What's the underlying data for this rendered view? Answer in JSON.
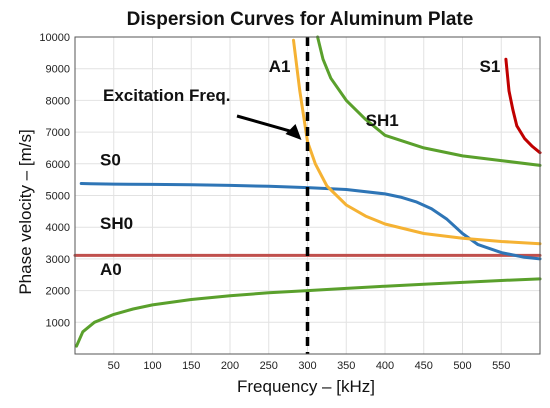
{
  "chart_data": {
    "type": "line",
    "title": "Dispersion Curves for Aluminum Plate",
    "xlabel": "Frequency – [kHz]",
    "ylabel": "Phase velocity – [m/s]",
    "xlim": [
      0,
      600
    ],
    "ylim": [
      0,
      10000
    ],
    "xticks": [
      50,
      100,
      150,
      200,
      250,
      300,
      350,
      400,
      450,
      500,
      550
    ],
    "yticks": [
      1000,
      2000,
      3000,
      4000,
      5000,
      6000,
      7000,
      8000,
      9000,
      10000
    ],
    "grid": true,
    "excitation": {
      "label": "Excitation Freq.",
      "x": 300
    },
    "series": [
      {
        "name": "A0",
        "color": "#5aa02c",
        "x": [
          2,
          10,
          25,
          50,
          75,
          100,
          150,
          200,
          250,
          300,
          350,
          400,
          450,
          500,
          550,
          600
        ],
        "y": [
          250,
          700,
          1000,
          1250,
          1420,
          1550,
          1720,
          1840,
          1930,
          2000,
          2070,
          2140,
          2200,
          2260,
          2320,
          2370
        ]
      },
      {
        "name": "SH0",
        "color": "#c0504d",
        "x": [
          0,
          600
        ],
        "y": [
          3110,
          3110
        ]
      },
      {
        "name": "S0",
        "color": "#2e75b6",
        "x": [
          8,
          20,
          50,
          100,
          150,
          200,
          250,
          300,
          350,
          400,
          420,
          440,
          460,
          480,
          500,
          520,
          550,
          580,
          600
        ],
        "y": [
          5380,
          5370,
          5360,
          5350,
          5340,
          5320,
          5290,
          5250,
          5190,
          5050,
          4950,
          4800,
          4580,
          4250,
          3800,
          3450,
          3200,
          3050,
          3000
        ]
      },
      {
        "name": "A1",
        "color": "#f5b233",
        "x": [
          282,
          290,
          300,
          310,
          325,
          350,
          375,
          400,
          450,
          500,
          550,
          600
        ],
        "y": [
          9900,
          8300,
          6700,
          6000,
          5300,
          4700,
          4350,
          4100,
          3800,
          3650,
          3550,
          3480
        ]
      },
      {
        "name": "SH1",
        "color": "#5aa02c",
        "x": [
          313,
          320,
          330,
          350,
          375,
          400,
          450,
          500,
          550,
          600
        ],
        "y": [
          10000,
          9300,
          8700,
          8000,
          7400,
          6900,
          6500,
          6250,
          6100,
          5950
        ]
      },
      {
        "name": "S1",
        "color": "#c00000",
        "x": [
          556,
          560,
          565,
          570,
          580,
          590,
          600
        ],
        "y": [
          9300,
          8300,
          7700,
          7200,
          6800,
          6550,
          6350
        ]
      }
    ]
  }
}
